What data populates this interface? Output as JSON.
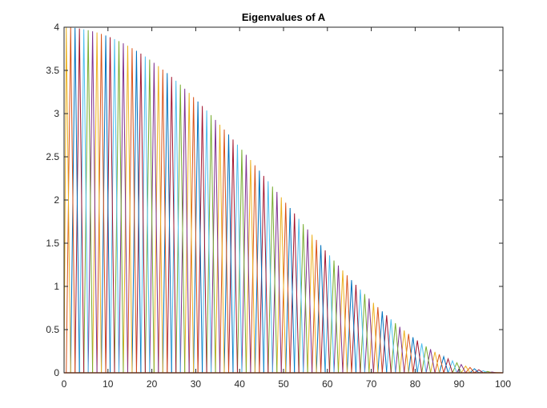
{
  "chart_data": {
    "type": "line",
    "title": "Eigenvalues of A",
    "xlabel": "",
    "ylabel": "",
    "xlim": [
      0,
      100
    ],
    "ylim": [
      0,
      4
    ],
    "x_ticks": [
      0,
      10,
      20,
      30,
      40,
      50,
      60,
      70,
      80,
      90,
      100
    ],
    "y_ticks": [
      0,
      0.5,
      1,
      1.5,
      2,
      2.5,
      3,
      3.5,
      4
    ],
    "y_tick_labels": [
      "0",
      "0.5",
      "1",
      "1.5",
      "2",
      "2.5",
      "3",
      "3.5",
      "4"
    ],
    "x_tick_labels": [
      "0",
      "10",
      "20",
      "30",
      "40",
      "50",
      "60",
      "70",
      "80",
      "90",
      "100"
    ],
    "grid": false,
    "box": true,
    "legend": "none",
    "description_of_series": "Each series is a stem from 0 up to an eigenvalue 2 - 2cos(k*pi/101) at x = 101 - k, for k = 1..100; lines connect consecutive eigenvalue peaks down to 0 so the envelope follows a cosine curve from 4 at x=0 to 0 at x=100.",
    "eigen_count": 100,
    "eigen_formula": {
      "a": 2,
      "b": 2,
      "n_plus_one": 101
    },
    "envelope": [
      {
        "x": 0,
        "y": 4.0
      },
      {
        "x": 10,
        "y": 3.9
      },
      {
        "x": 20,
        "y": 3.62
      },
      {
        "x": 30,
        "y": 3.16
      },
      {
        "x": 40,
        "y": 2.59
      },
      {
        "x": 50,
        "y": 1.97
      },
      {
        "x": 60,
        "y": 1.35
      },
      {
        "x": 70,
        "y": 0.78
      },
      {
        "x": 80,
        "y": 0.35
      },
      {
        "x": 90,
        "y": 0.08
      },
      {
        "x": 100,
        "y": 0.0
      }
    ]
  },
  "colors": {
    "series_cycle": [
      "#0072BD",
      "#D95319",
      "#EDB120",
      "#7E2F8E",
      "#77AC30",
      "#4DBEEE",
      "#A2142F"
    ],
    "axis": "#262626",
    "background": "#ffffff"
  }
}
